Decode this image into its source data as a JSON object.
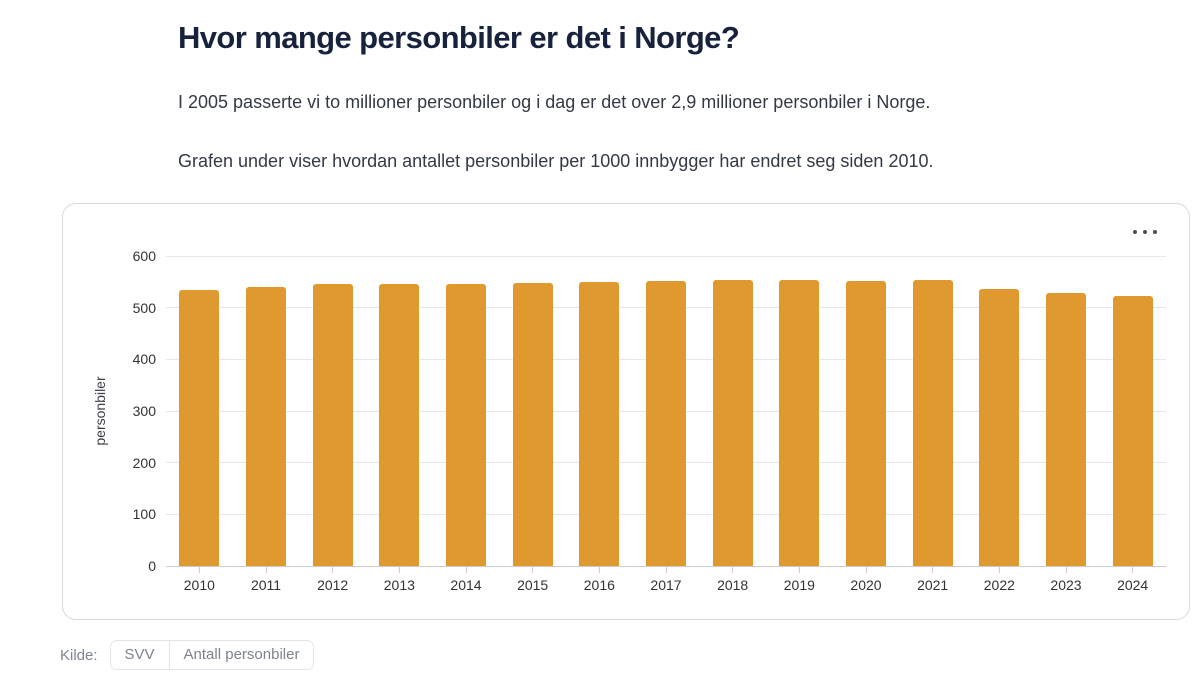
{
  "page": {
    "title": "Hvor mange personbiler er det i Norge?",
    "paragraphs": [
      "I 2005 passerte vi to millioner personbiler og i dag er det over 2,9 millioner personbiler i Norge.",
      "Grafen under viser hvordan antallet personbiler per 1000 innbygger har endret seg siden 2010."
    ]
  },
  "chart_data": {
    "type": "bar",
    "title": "",
    "categories": [
      "2010",
      "2011",
      "2012",
      "2013",
      "2014",
      "2015",
      "2016",
      "2017",
      "2018",
      "2019",
      "2020",
      "2021",
      "2022",
      "2023",
      "2024"
    ],
    "values": [
      534,
      540,
      546,
      546,
      545,
      547,
      550,
      552,
      554,
      553,
      551,
      553,
      537,
      528,
      522
    ],
    "xlabel": "",
    "ylabel": "personbiler",
    "ylim": [
      0,
      600
    ],
    "yticks": [
      0,
      100,
      200,
      300,
      400,
      500,
      600
    ],
    "grid": true,
    "legend": "none",
    "bar_color": "#e0992e"
  },
  "menu": {
    "icon": "ellipsis-menu"
  },
  "source": {
    "label": "Kilde:",
    "items": [
      {
        "label": "SVV"
      },
      {
        "label": "Antall personbiler"
      }
    ]
  },
  "colors": {
    "bar": "#e0992e",
    "title_text": "#17223d",
    "body_text": "#333a45",
    "axis_text": "#333333",
    "gridline": "#e6e6e6",
    "axis_line": "#cccccc",
    "muted_text": "#7e858e",
    "card_border": "#d9d9d9"
  }
}
